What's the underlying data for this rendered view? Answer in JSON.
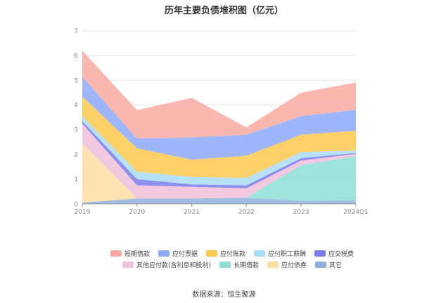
{
  "chart_data": {
    "type": "area",
    "stacked": true,
    "title": "历年主要负债堆积图（亿元）",
    "categories": [
      "2019",
      "2020",
      "2021",
      "2022",
      "2023",
      "2024Q1"
    ],
    "ylim": [
      0,
      7
    ],
    "yticks": [
      "0",
      "1",
      "2",
      "3",
      "4",
      "5",
      "6",
      "7"
    ],
    "grid": true,
    "legend_position": "bottom",
    "series": [
      {
        "name": "其它",
        "color": "#8fb0dc",
        "values": [
          0.05,
          0.22,
          0.22,
          0.25,
          0.12,
          0.13
        ]
      },
      {
        "name": "应付债券",
        "color": "#fedea3",
        "values": [
          2.4,
          0.0,
          0.0,
          0.0,
          0.0,
          0.0
        ]
      },
      {
        "name": "长期借款",
        "color": "#8ddfd6",
        "values": [
          0.0,
          0.0,
          0.0,
          0.0,
          1.45,
          1.8
        ]
      },
      {
        "name": "其他应付款(含利息和股利)",
        "color": "#f1c0db",
        "values": [
          0.8,
          0.53,
          0.47,
          0.38,
          0.18,
          0.1
        ]
      },
      {
        "name": "应交税费",
        "color": "#7b7ce9",
        "values": [
          0.1,
          0.25,
          0.1,
          0.12,
          0.1,
          0.03
        ]
      },
      {
        "name": "应付职工薪酬",
        "color": "#a9dcf7",
        "values": [
          0.2,
          0.3,
          0.3,
          0.3,
          0.25,
          0.1
        ]
      },
      {
        "name": "应付账款",
        "color": "#fdc84f",
        "values": [
          0.8,
          0.95,
          0.7,
          0.9,
          0.7,
          0.8
        ]
      },
      {
        "name": "应付票据",
        "color": "#8fa9fb",
        "values": [
          0.8,
          0.4,
          0.9,
          0.85,
          0.75,
          0.85
        ]
      },
      {
        "name": "短期借款",
        "color": "#f8aaa2",
        "values": [
          1.05,
          1.15,
          1.6,
          0.3,
          0.95,
          1.1
        ]
      }
    ]
  },
  "legend": {
    "row1": [
      {
        "label": "短期借款",
        "color": "#f8aaa2"
      },
      {
        "label": "应付票据",
        "color": "#8fa9fb"
      },
      {
        "label": "应付账款",
        "color": "#fdc84f"
      },
      {
        "label": "应付职工薪酬",
        "color": "#a9dcf7"
      },
      {
        "label": "应交税费",
        "color": "#7b7ce9"
      }
    ],
    "row2": [
      {
        "label": "其他应付款(含利息和股利)",
        "color": "#f1c0db"
      },
      {
        "label": "长期借款",
        "color": "#8ddfd6"
      },
      {
        "label": "应付债券",
        "color": "#fedea3"
      },
      {
        "label": "其它",
        "color": "#8fb0dc"
      }
    ]
  },
  "source": "数据来源：恒生聚源"
}
